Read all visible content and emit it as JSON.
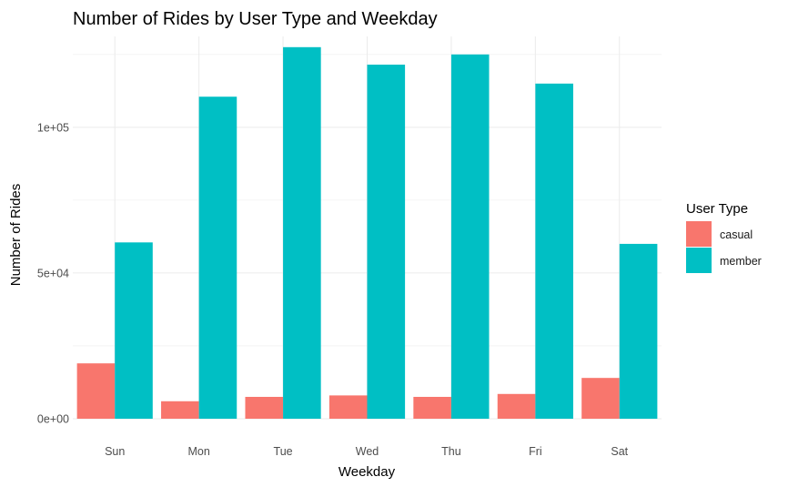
{
  "chart_data": {
    "type": "bar",
    "title": "Number of Rides by User Type and Weekday",
    "xlabel": "Weekday",
    "ylabel": "Number of Rides",
    "categories": [
      "Sun",
      "Mon",
      "Tue",
      "Wed",
      "Thu",
      "Fri",
      "Sat"
    ],
    "series": [
      {
        "name": "casual",
        "color": "#F8766D",
        "values": [
          19000,
          6000,
          7500,
          8000,
          7500,
          8500,
          14000
        ]
      },
      {
        "name": "member",
        "color": "#00BFC4",
        "values": [
          60500,
          110500,
          127500,
          121500,
          125000,
          115000,
          60000
        ]
      }
    ],
    "ylim": [
      0,
      131000
    ],
    "yticks": [
      {
        "value": 0,
        "label": "0e+00"
      },
      {
        "value": 50000,
        "label": "5e+04"
      },
      {
        "value": 100000,
        "label": "1e+05"
      }
    ],
    "legend": {
      "title": "User Type",
      "position": "right"
    },
    "grid": true
  }
}
